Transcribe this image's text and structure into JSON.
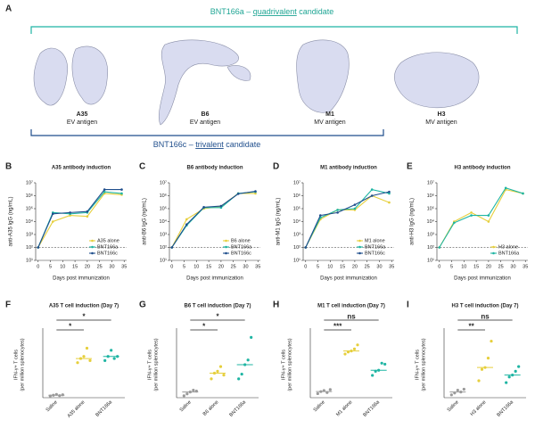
{
  "panel_a": {
    "panel": "A",
    "top_title_parts": [
      "BNT166a – ",
      "quadrivalent",
      " candidate"
    ],
    "bottom_title_parts": [
      "BNT166c – ",
      "trivalent",
      " candidate"
    ],
    "antigens": [
      {
        "name": "A35",
        "type": "EV antigen"
      },
      {
        "name": "B6",
        "type": "EV antigen"
      },
      {
        "name": "M1",
        "type": "MV antigen"
      },
      {
        "name": "H3",
        "type": "MV antigen"
      }
    ]
  },
  "chart_data": [
    {
      "type": "line",
      "panel": "B",
      "title": "A35 antibody induction",
      "ylabel": "anti-A35 IgG (ng/mL)",
      "xlabel": "Days post immunization",
      "log_y": true,
      "legend": "lower right",
      "x": [
        0,
        6,
        13,
        20,
        27,
        34
      ],
      "xlim": [
        -1,
        36
      ],
      "xticks": [
        0,
        5,
        10,
        15,
        20,
        25,
        30,
        35
      ],
      "ylim": [
        10,
        10000000
      ],
      "yticks": [
        {
          "value": 10,
          "label": "10¹"
        },
        {
          "value": 100,
          "label": "10²"
        },
        {
          "value": 1000,
          "label": "10³"
        },
        {
          "value": 10000,
          "label": "10⁴"
        },
        {
          "value": 100000,
          "label": "10⁵"
        },
        {
          "value": 1000000,
          "label": "10⁶"
        },
        {
          "value": 10000000,
          "label": "10⁷"
        }
      ],
      "reference_line": 100,
      "series": [
        {
          "name": "A35 alone",
          "color": "#e6cf3c",
          "values": [
            100,
            10000,
            30000,
            25000,
            1500000,
            1200000
          ]
        },
        {
          "name": "BNT166a",
          "color": "#1fb5a3",
          "values": [
            100,
            50000,
            40000,
            50000,
            2000000,
            1500000
          ]
        },
        {
          "name": "BNT166c",
          "color": "#1f4e8c",
          "values": [
            100,
            40000,
            50000,
            60000,
            3000000,
            3000000
          ]
        }
      ]
    },
    {
      "type": "line",
      "panel": "C",
      "title": "B6 antibody induction",
      "ylabel": "anti-B6 IgG (ng/mL)",
      "xlabel": "Days post immunization",
      "log_y": true,
      "legend": "lower right",
      "x": [
        0,
        6,
        13,
        20,
        27,
        34
      ],
      "xlim": [
        -1,
        36
      ],
      "xticks": [
        0,
        5,
        10,
        15,
        20,
        25,
        30,
        35
      ],
      "ylim": [
        10,
        10000000
      ],
      "yticks": [
        {
          "value": 10,
          "label": "10¹"
        },
        {
          "value": 100,
          "label": "10²"
        },
        {
          "value": 1000,
          "label": "10³"
        },
        {
          "value": 10000,
          "label": "10⁴"
        },
        {
          "value": 100000,
          "label": "10⁵"
        },
        {
          "value": 1000000,
          "label": "10⁶"
        },
        {
          "value": 10000000,
          "label": "10⁷"
        }
      ],
      "reference_line": 100,
      "series": [
        {
          "name": "B6 alone",
          "color": "#e6cf3c",
          "values": [
            100,
            15000,
            100000,
            150000,
            1500000,
            1500000
          ]
        },
        {
          "name": "BNT166a",
          "color": "#1fb5a3",
          "values": [
            100,
            5000,
            120000,
            120000,
            1500000,
            2000000
          ]
        },
        {
          "name": "BNT166c",
          "color": "#1f4e8c",
          "values": [
            100,
            6000,
            130000,
            160000,
            1400000,
            2200000
          ]
        }
      ]
    },
    {
      "type": "line",
      "panel": "D",
      "title": "M1 antibody induction",
      "ylabel": "anti-M1 IgG (ng/mL)",
      "xlabel": "Days post immunization",
      "log_y": true,
      "legend": "lower right",
      "x": [
        0,
        6,
        13,
        20,
        27,
        34
      ],
      "xlim": [
        -1,
        36
      ],
      "xticks": [
        0,
        5,
        10,
        15,
        20,
        25,
        30,
        35
      ],
      "ylim": [
        10,
        10000000
      ],
      "yticks": [
        {
          "value": 10,
          "label": "10¹"
        },
        {
          "value": 100,
          "label": "10²"
        },
        {
          "value": 1000,
          "label": "10³"
        },
        {
          "value": 10000,
          "label": "10⁴"
        },
        {
          "value": 100000,
          "label": "10⁵"
        },
        {
          "value": 1000000,
          "label": "10⁶"
        },
        {
          "value": 10000000,
          "label": "10⁷"
        }
      ],
      "reference_line": 100,
      "series": [
        {
          "name": "M1 alone",
          "color": "#e6cf3c",
          "values": [
            100,
            15000,
            80000,
            80000,
            1000000,
            300000
          ]
        },
        {
          "name": "BNT166a",
          "color": "#1fb5a3",
          "values": [
            100,
            20000,
            80000,
            100000,
            3000000,
            1500000
          ]
        },
        {
          "name": "BNT166c",
          "color": "#1f4e8c",
          "values": [
            100,
            30000,
            50000,
            200000,
            1000000,
            2000000
          ]
        }
      ]
    },
    {
      "type": "line",
      "panel": "E",
      "title": "H3 antibody induction",
      "ylabel": "anti-H3 IgG (ng/mL)",
      "xlabel": "Days post immunization",
      "log_y": true,
      "legend": "lower right",
      "x": [
        0,
        6,
        13,
        20,
        27,
        34
      ],
      "xlim": [
        -1,
        36
      ],
      "xticks": [
        0,
        5,
        10,
        15,
        20,
        25,
        30,
        35
      ],
      "ylim": [
        10,
        10000000
      ],
      "yticks": [
        {
          "value": 10,
          "label": "10¹"
        },
        {
          "value": 100,
          "label": "10²"
        },
        {
          "value": 1000,
          "label": "10³"
        },
        {
          "value": 10000,
          "label": "10⁴"
        },
        {
          "value": 100000,
          "label": "10⁵"
        },
        {
          "value": 1000000,
          "label": "10⁶"
        },
        {
          "value": 10000000,
          "label": "10⁷"
        }
      ],
      "reference_line": 100,
      "series": [
        {
          "name": "H3 alone",
          "color": "#e6cf3c",
          "values": [
            100,
            10000,
            50000,
            10000,
            3000000,
            1500000
          ]
        },
        {
          "name": "BNT166a",
          "color": "#1fb5a3",
          "values": [
            100,
            8000,
            30000,
            30000,
            4000000,
            1500000
          ]
        }
      ]
    },
    {
      "type": "dot",
      "panel": "F",
      "title": "A35 T cell induction (Day 7)",
      "ylabel": [
        "IFN-γ+ T cells",
        "(per million splenocytes)"
      ],
      "ylim": [
        0,
        1600
      ],
      "categories": [
        "Saline",
        "A35 alone",
        "BNT166a"
      ],
      "colors": [
        "#9a9a9a",
        "#e6cf3c",
        "#1fb5a3"
      ],
      "values": [
        [
          40,
          60,
          80,
          50,
          70
        ],
        [
          850,
          950,
          1000,
          1200,
          900
        ],
        [
          900,
          1000,
          1150,
          950,
          1000
        ]
      ],
      "medians": [
        60,
        950,
        1000
      ],
      "annotations": [
        {
          "label": "*",
          "between": [
            "Saline",
            "A35 alone"
          ]
        },
        {
          "label": "*",
          "between": [
            "Saline",
            "BNT166a"
          ]
        }
      ]
    },
    {
      "type": "dot",
      "panel": "G",
      "title": "B6 T cell induction (Day 7)",
      "ylabel": [
        "IFN-γ+ T cells",
        "(per million splenocytes)"
      ],
      "ylim": [
        0,
        700
      ],
      "categories": [
        "Saline",
        "B6 alone",
        "BNT166a"
      ],
      "colors": [
        "#9a9a9a",
        "#e6cf3c",
        "#1fb5a3"
      ],
      "values": [
        [
          20,
          40,
          60,
          80,
          70
        ],
        [
          200,
          260,
          280,
          330,
          240
        ],
        [
          200,
          250,
          350,
          400,
          640
        ]
      ],
      "medians": [
        60,
        260,
        350
      ],
      "annotations": [
        {
          "label": "*",
          "between": [
            "Saline",
            "B6 alone"
          ]
        },
        {
          "label": "*",
          "between": [
            "Saline",
            "BNT166a"
          ]
        }
      ]
    },
    {
      "type": "dot",
      "panel": "H",
      "title": "M1 T cell induction (Day 7)",
      "ylabel": [
        "IFN-γ+ T cells",
        "(per million splenocytes)"
      ],
      "ylim": [
        0,
        650
      ],
      "categories": [
        "Saline",
        "M1 alone",
        "BNT166a"
      ],
      "colors": [
        "#9a9a9a",
        "#e6cf3c",
        "#1fb5a3"
      ],
      "values": [
        [
          40,
          60,
          70,
          50,
          80
        ],
        [
          430,
          450,
          460,
          480,
          520
        ],
        [
          220,
          260,
          270,
          340,
          330
        ]
      ],
      "medians": [
        60,
        460,
        270
      ],
      "annotations": [
        {
          "label": "***",
          "between": [
            "Saline",
            "M1 alone"
          ]
        },
        {
          "label": "ns",
          "between": [
            "Saline",
            "BNT166a"
          ]
        }
      ]
    },
    {
      "type": "dot",
      "panel": "I",
      "title": "H3 T cell induction (Day 7)",
      "ylabel": [
        "IFN-γ+ T cells",
        "(per million splenocytes)"
      ],
      "ylim": [
        0,
        700
      ],
      "categories": [
        "Saline",
        "H3 alone",
        "BNT166a"
      ],
      "colors": [
        "#9a9a9a",
        "#e6cf3c",
        "#1fb5a3"
      ],
      "values": [
        [
          30,
          50,
          80,
          60,
          90
        ],
        [
          180,
          300,
          320,
          420,
          600
        ],
        [
          160,
          220,
          240,
          280,
          330
        ]
      ],
      "medians": [
        60,
        320,
        240
      ],
      "annotations": [
        {
          "label": "**",
          "between": [
            "Saline",
            "H3 alone"
          ]
        },
        {
          "label": "ns",
          "between": [
            "Saline",
            "BNT166a"
          ]
        }
      ]
    }
  ]
}
